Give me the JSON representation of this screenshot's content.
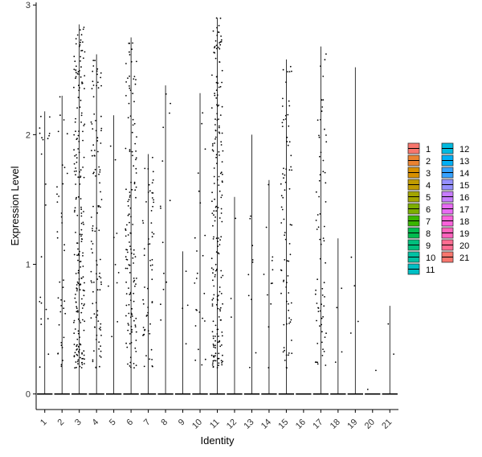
{
  "chart_data": {
    "type": "violin",
    "title": "",
    "xlabel": "Identity",
    "ylabel": "Expression Level",
    "ylim": [
      -0.12,
      3.02
    ],
    "yticks": [
      0,
      1,
      2,
      3
    ],
    "grid": false,
    "legend_position": "right",
    "legend_columns": 2,
    "categories": [
      "1",
      "2",
      "3",
      "4",
      "5",
      "6",
      "7",
      "8",
      "9",
      "10",
      "11",
      "12",
      "13",
      "14",
      "15",
      "16",
      "17",
      "18",
      "19",
      "20",
      "21"
    ],
    "colors": [
      "#F8766D",
      "#EA8331",
      "#D89000",
      "#C09B00",
      "#A3A500",
      "#7CAE00",
      "#39B600",
      "#00BB4E",
      "#00BF7D",
      "#00C1A3",
      "#00BFC4",
      "#00BAE0",
      "#00B0F6",
      "#35A2FF",
      "#9590FF",
      "#C77CFF",
      "#E76BF3",
      "#FA62DB",
      "#FF62BC",
      "#FF6C91",
      "#F8766D"
    ],
    "max_expression": [
      2.18,
      2.3,
      2.85,
      2.62,
      2.15,
      2.75,
      1.85,
      2.38,
      1.1,
      2.32,
      2.9,
      1.52,
      2.0,
      1.65,
      2.58,
      0.0,
      2.68,
      1.2,
      2.52,
      0.0,
      0.68
    ],
    "expressing_cells": [
      22,
      40,
      210,
      110,
      10,
      140,
      60,
      14,
      4,
      24,
      200,
      3,
      10,
      12,
      80,
      0,
      70,
      4,
      4,
      2,
      2
    ],
    "jitter_width": 0.32
  }
}
